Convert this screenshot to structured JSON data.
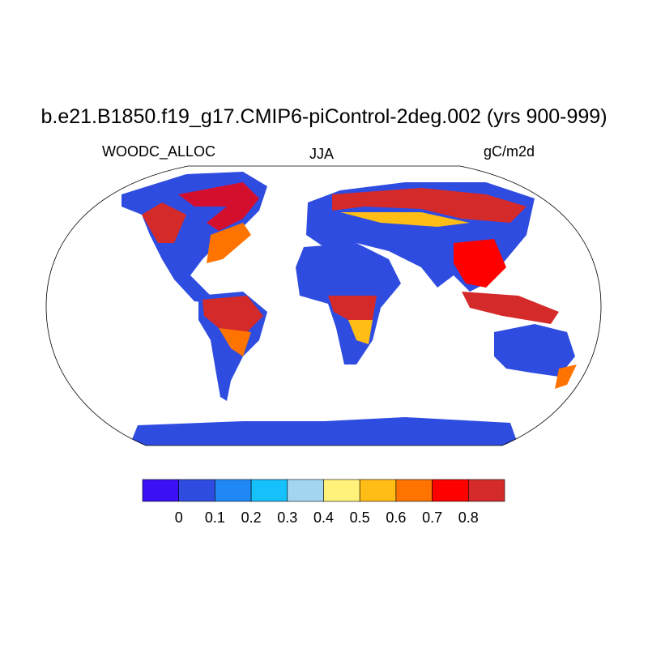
{
  "title": "b.e21.B1850.f19_g17.CMIP6-piControl-2deg.002 (yrs 900-999)",
  "left_label": "WOODC_ALLOC",
  "center_label": "JJA",
  "right_label": "gC/m2d",
  "projection": "Robinson",
  "colorbar": {
    "colors": [
      "#3c10f5",
      "#2f4ce0",
      "#2088f5",
      "#16c0fa",
      "#a2d6f0",
      "#fff27a",
      "#ffbd15",
      "#ff7400",
      "#fe0000",
      "#d52a2a"
    ],
    "tick_labels": [
      "0",
      "0.1",
      "0.2",
      "0.3",
      "0.4",
      "0.5",
      "0.6",
      "0.7",
      "0.8"
    ]
  }
}
